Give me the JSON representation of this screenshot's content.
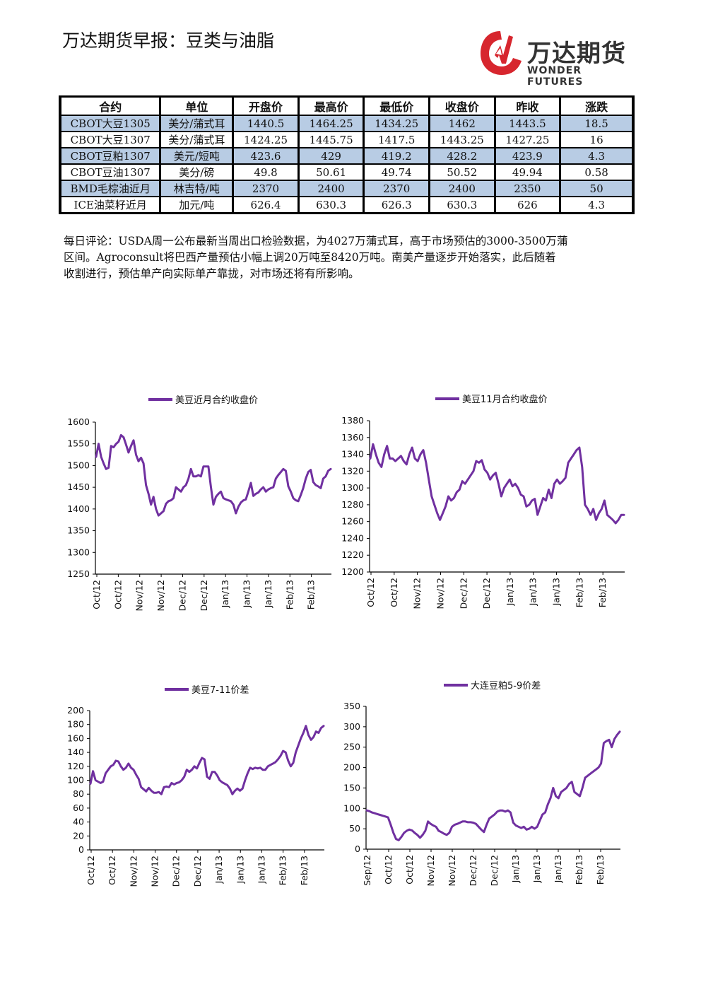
{
  "header": {
    "title": "万达期货早报：豆类与油脂"
  },
  "logo": {
    "cn": "万达期货",
    "en": "WONDER FUTURES"
  },
  "table": {
    "columns": [
      "合约",
      "单位",
      "开盘价",
      "最高价",
      "最低价",
      "收盘价",
      "昨收",
      "涨跌"
    ],
    "rows": [
      [
        "CBOT大豆1305",
        "美分/蒲式耳",
        "1440.5",
        "1464.25",
        "1434.25",
        "1462",
        "1443.5",
        "18.5"
      ],
      [
        "CBOT大豆1307",
        "美分/蒲式耳",
        "1424.25",
        "1445.75",
        "1417.5",
        "1443.25",
        "1427.25",
        "16"
      ],
      [
        "CBOT豆粕1307",
        "美元/短吨",
        "423.6",
        "429",
        "419.2",
        "428.2",
        "423.9",
        "4.3"
      ],
      [
        "CBOT豆油1307",
        "美分/磅",
        "49.8",
        "50.61",
        "49.74",
        "50.52",
        "49.94",
        "0.58"
      ],
      [
        "BMD毛棕油近月",
        "林吉特/吨",
        "2370",
        "2400",
        "2370",
        "2400",
        "2350",
        "50"
      ],
      [
        "ICE油菜籽近月",
        "加元/吨",
        "626.4",
        "630.3",
        "626.3",
        "630.3",
        "626",
        "4.3"
      ]
    ]
  },
  "comment": {
    "lines": [
      "每日评论：USDA周一公布最新当周出口检验数据，为4027万蒲式耳，高于市场预估的3000-3500万蒲",
      "区间。Agroconsult将巴西产量预估小幅上调20万吨至8420万吨。南美产量逐步开始落实，此后随着",
      "收割进行，预估单产向实际单产靠拢，对市场还将有所影响。"
    ]
  },
  "colors": {
    "line": "#7030a0",
    "table_shade": "#b8cce4"
  },
  "chart_data": [
    {
      "type": "line",
      "series": [
        {
          "name": "美豆近月合约收盘价",
          "values": [
            1520,
            1550,
            1520,
            1505,
            1492,
            1495,
            1545,
            1542,
            1550,
            1555,
            1570,
            1565,
            1548,
            1530,
            1545,
            1558,
            1525,
            1510,
            1518,
            1505,
            1455,
            1435,
            1410,
            1428,
            1400,
            1385,
            1390,
            1395,
            1412,
            1418,
            1420,
            1425,
            1450,
            1445,
            1440,
            1450,
            1455,
            1470,
            1492,
            1475,
            1475,
            1478,
            1475,
            1498,
            1498,
            1498,
            1450,
            1410,
            1428,
            1435,
            1440,
            1425,
            1422,
            1420,
            1418,
            1410,
            1390,
            1405,
            1415,
            1420,
            1422,
            1440,
            1460,
            1430,
            1435,
            1438,
            1445,
            1450,
            1440,
            1445,
            1448,
            1450,
            1470,
            1478,
            1485,
            1492,
            1488,
            1452,
            1440,
            1425,
            1420,
            1418,
            1432,
            1448,
            1470,
            1485,
            1490,
            1462,
            1455,
            1452,
            1448,
            1470,
            1475,
            1488,
            1492
          ]
        }
      ],
      "x_tick_labels": [
        "Oct/12",
        "Oct/12",
        "Nov/12",
        "Nov/12",
        "Dec/12",
        "Dec/12",
        "Jan/13",
        "Jan/13",
        "Jan/13",
        "Feb/13",
        "Feb/13"
      ],
      "y_tick_labels": [
        "1250",
        "1300",
        "1350",
        "1400",
        "1450",
        "1500",
        "1550",
        "1600"
      ],
      "ylim": [
        1250,
        1600
      ],
      "legend": "top"
    },
    {
      "type": "line",
      "series": [
        {
          "name": "美豆11月合约收盘价",
          "values": [
            1335,
            1352,
            1340,
            1330,
            1325,
            1340,
            1350,
            1335,
            1335,
            1332,
            1335,
            1338,
            1332,
            1328,
            1340,
            1348,
            1335,
            1332,
            1340,
            1345,
            1330,
            1310,
            1290,
            1280,
            1270,
            1262,
            1270,
            1278,
            1290,
            1285,
            1288,
            1295,
            1298,
            1308,
            1305,
            1310,
            1315,
            1320,
            1332,
            1330,
            1333,
            1322,
            1318,
            1310,
            1315,
            1318,
            1305,
            1290,
            1300,
            1305,
            1310,
            1302,
            1305,
            1300,
            1292,
            1290,
            1278,
            1280,
            1285,
            1287,
            1268,
            1278,
            1288,
            1285,
            1298,
            1288,
            1305,
            1310,
            1305,
            1308,
            1312,
            1330,
            1335,
            1340,
            1345,
            1348,
            1325,
            1280,
            1275,
            1268,
            1275,
            1262,
            1270,
            1275,
            1285,
            1268,
            1265,
            1262,
            1258,
            1262,
            1268,
            1268
          ]
        }
      ],
      "x_tick_labels": [
        "Oct/12",
        "Oct/12",
        "Nov/12",
        "Nov/12",
        "Dec/12",
        "Dec/12",
        "Jan/13",
        "Jan/13",
        "Jan/13",
        "Feb/13",
        "Feb/13"
      ],
      "y_tick_labels": [
        "1200",
        "1220",
        "1240",
        "1260",
        "1280",
        "1300",
        "1320",
        "1340",
        "1360",
        "1380"
      ],
      "ylim": [
        1200,
        1380
      ],
      "legend": "top"
    },
    {
      "type": "line",
      "series": [
        {
          "name": "美豆7-11价差",
          "values": [
            95,
            113,
            100,
            98,
            96,
            98,
            110,
            115,
            120,
            122,
            128,
            127,
            120,
            115,
            118,
            124,
            118,
            115,
            108,
            102,
            90,
            87,
            84,
            89,
            85,
            82,
            82,
            83,
            80,
            90,
            91,
            90,
            96,
            94,
            96,
            97,
            100,
            105,
            115,
            112,
            115,
            120,
            117,
            125,
            132,
            130,
            105,
            102,
            112,
            112,
            107,
            100,
            97,
            95,
            93,
            88,
            80,
            85,
            88,
            85,
            88,
            100,
            110,
            118,
            116,
            118,
            117,
            118,
            115,
            115,
            120,
            122,
            124,
            126,
            130,
            135,
            142,
            140,
            128,
            120,
            125,
            140,
            150,
            160,
            168,
            178,
            165,
            158,
            162,
            170,
            168,
            175,
            178
          ]
        }
      ],
      "x_tick_labels": [
        "Oct/12",
        "Oct/12",
        "Nov/12",
        "Nov/12",
        "Dec/12",
        "Dec/12",
        "Jan/13",
        "Jan/13",
        "Jan/13",
        "Feb/13",
        "Feb/13"
      ],
      "y_tick_labels": [
        "0",
        "20",
        "40",
        "60",
        "80",
        "100",
        "120",
        "140",
        "160",
        "180",
        "200"
      ],
      "ylim": [
        0,
        200
      ],
      "legend": "top"
    },
    {
      "type": "line",
      "series": [
        {
          "name": "大连豆粕5-9价差",
          "values": [
            95,
            93,
            90,
            88,
            86,
            84,
            82,
            80,
            78,
            60,
            40,
            25,
            22,
            30,
            40,
            45,
            48,
            46,
            40,
            35,
            28,
            35,
            45,
            68,
            62,
            58,
            55,
            45,
            42,
            38,
            35,
            40,
            55,
            60,
            62,
            65,
            68,
            68,
            66,
            66,
            65,
            62,
            55,
            48,
            42,
            60,
            75,
            80,
            85,
            92,
            95,
            95,
            92,
            95,
            90,
            65,
            58,
            55,
            52,
            55,
            48,
            50,
            55,
            50,
            55,
            70,
            85,
            90,
            110,
            125,
            150,
            130,
            125,
            140,
            145,
            150,
            160,
            165,
            140,
            135,
            130,
            150,
            175,
            180,
            185,
            190,
            195,
            200,
            210,
            260,
            265,
            268,
            250,
            270,
            280,
            288
          ]
        }
      ],
      "x_tick_labels": [
        "Sep/12",
        "Oct/12",
        "Oct/12",
        "Nov/12",
        "Nov/12",
        "Dec/12",
        "Dec/12",
        "Jan/13",
        "Jan/13",
        "Jan/13",
        "Feb/13",
        "Feb/13"
      ],
      "y_tick_labels": [
        "0",
        "50",
        "100",
        "150",
        "200",
        "250",
        "300",
        "350"
      ],
      "ylim": [
        0,
        350
      ],
      "legend": "top"
    }
  ]
}
